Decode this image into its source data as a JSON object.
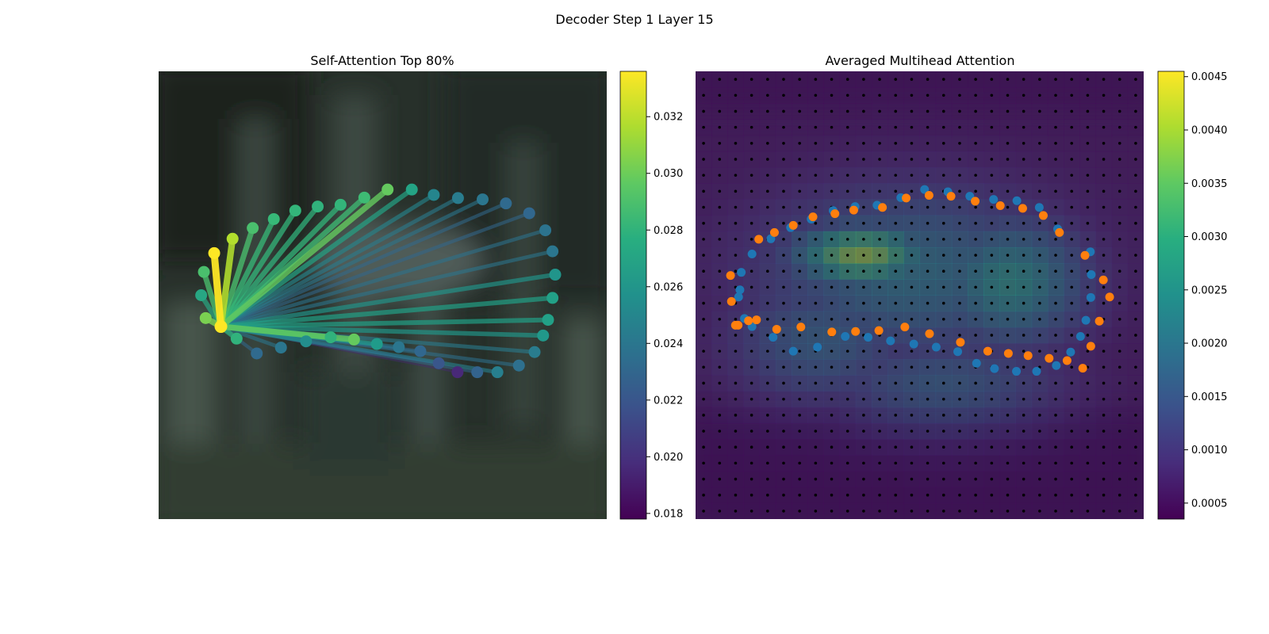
{
  "figure": {
    "title": "Decoder Step 1 Layer 15"
  },
  "chart_data": [
    {
      "type": "scatter",
      "title": "Self-Attention Top 80%",
      "xlim": [
        0,
        1
      ],
      "ylim": [
        0,
        1
      ],
      "axes_visible": false,
      "grid": false,
      "background": "blurred dark green forest photo",
      "colormap": "viridis",
      "colorbar": {
        "range": [
          0.0178,
          0.0336
        ],
        "ticks": [
          0.018,
          0.02,
          0.022,
          0.024,
          0.026,
          0.028,
          0.03,
          0.032
        ],
        "tick_labels": [
          "0.018",
          "0.020",
          "0.022",
          "0.024",
          "0.026",
          "0.028",
          "0.030",
          "0.032"
        ]
      },
      "query_point": {
        "x": 0.139,
        "y": 0.43,
        "value": 0.0336
      },
      "points": [
        {
          "x": 0.124,
          "y": 0.594,
          "v": 0.0336
        },
        {
          "x": 0.165,
          "y": 0.626,
          "v": 0.0318
        },
        {
          "x": 0.21,
          "y": 0.65,
          "v": 0.029
        },
        {
          "x": 0.257,
          "y": 0.67,
          "v": 0.0284
        },
        {
          "x": 0.305,
          "y": 0.689,
          "v": 0.0282
        },
        {
          "x": 0.355,
          "y": 0.698,
          "v": 0.028
        },
        {
          "x": 0.406,
          "y": 0.702,
          "v": 0.0282
        },
        {
          "x": 0.459,
          "y": 0.718,
          "v": 0.0286
        },
        {
          "x": 0.511,
          "y": 0.736,
          "v": 0.0298
        },
        {
          "x": 0.565,
          "y": 0.736,
          "v": 0.027
        },
        {
          "x": 0.614,
          "y": 0.724,
          "v": 0.025
        },
        {
          "x": 0.668,
          "y": 0.717,
          "v": 0.0244
        },
        {
          "x": 0.723,
          "y": 0.714,
          "v": 0.024
        },
        {
          "x": 0.775,
          "y": 0.705,
          "v": 0.0232
        },
        {
          "x": 0.827,
          "y": 0.683,
          "v": 0.023
        },
        {
          "x": 0.863,
          "y": 0.645,
          "v": 0.0238
        },
        {
          "x": 0.879,
          "y": 0.598,
          "v": 0.024
        },
        {
          "x": 0.885,
          "y": 0.546,
          "v": 0.026
        },
        {
          "x": 0.879,
          "y": 0.494,
          "v": 0.0268
        },
        {
          "x": 0.869,
          "y": 0.445,
          "v": 0.0268
        },
        {
          "x": 0.858,
          "y": 0.41,
          "v": 0.0262
        },
        {
          "x": 0.839,
          "y": 0.373,
          "v": 0.0244
        },
        {
          "x": 0.804,
          "y": 0.343,
          "v": 0.0236
        },
        {
          "x": 0.756,
          "y": 0.328,
          "v": 0.0246
        },
        {
          "x": 0.711,
          "y": 0.328,
          "v": 0.0228
        },
        {
          "x": 0.667,
          "y": 0.328,
          "v": 0.0196
        },
        {
          "x": 0.625,
          "y": 0.348,
          "v": 0.022
        },
        {
          "x": 0.584,
          "y": 0.375,
          "v": 0.023
        },
        {
          "x": 0.536,
          "y": 0.384,
          "v": 0.024
        },
        {
          "x": 0.487,
          "y": 0.391,
          "v": 0.0264
        },
        {
          "x": 0.436,
          "y": 0.401,
          "v": 0.0298
        },
        {
          "x": 0.384,
          "y": 0.406,
          "v": 0.028
        },
        {
          "x": 0.329,
          "y": 0.397,
          "v": 0.0256
        },
        {
          "x": 0.273,
          "y": 0.383,
          "v": 0.024
        },
        {
          "x": 0.219,
          "y": 0.37,
          "v": 0.0232
        },
        {
          "x": 0.174,
          "y": 0.403,
          "v": 0.028
        },
        {
          "x": 0.105,
          "y": 0.449,
          "v": 0.0304
        },
        {
          "x": 0.095,
          "y": 0.5,
          "v": 0.0272
        },
        {
          "x": 0.101,
          "y": 0.552,
          "v": 0.029
        }
      ]
    },
    {
      "type": "heatmap",
      "title": "Averaged Multihead Attention",
      "xlim": [
        0,
        1
      ],
      "ylim": [
        0,
        1
      ],
      "axes_visible": false,
      "colormap": "viridis",
      "grid_rows": 28,
      "grid_cols": 28,
      "hotspots": [
        {
          "x": 0.37,
          "y": 0.59,
          "sx": 0.11,
          "sy": 0.05,
          "v": 0.0039
        },
        {
          "x": 0.48,
          "y": 0.55,
          "sx": 0.23,
          "sy": 0.13,
          "v": 0.0023
        },
        {
          "x": 0.7,
          "y": 0.53,
          "sx": 0.12,
          "sy": 0.1,
          "v": 0.0028
        },
        {
          "x": 0.28,
          "y": 0.4,
          "sx": 0.14,
          "sy": 0.1,
          "v": 0.0019
        },
        {
          "x": 0.55,
          "y": 0.3,
          "sx": 0.18,
          "sy": 0.08,
          "v": 0.0018
        }
      ],
      "base_value": 0.00045,
      "colorbar": {
        "range": [
          0.00035,
          0.00455
        ],
        "ticks": [
          0.0005,
          0.001,
          0.0015,
          0.002,
          0.0025,
          0.003,
          0.0035,
          0.004,
          0.0045
        ],
        "tick_labels": [
          "0.0005",
          "0.0010",
          "0.0015",
          "0.0020",
          "0.0025",
          "0.0030",
          "0.0035",
          "0.0040",
          "0.0045"
        ]
      },
      "overlays": [
        {
          "color": "#1f77b4",
          "points": [
            [
              0.109,
              0.448
            ],
            [
              0.096,
              0.496
            ],
            [
              0.102,
              0.551
            ],
            [
              0.126,
              0.592
            ],
            [
              0.168,
              0.626
            ],
            [
              0.212,
              0.651
            ],
            [
              0.258,
              0.67
            ],
            [
              0.307,
              0.689
            ],
            [
              0.356,
              0.698
            ],
            [
              0.405,
              0.701
            ],
            [
              0.458,
              0.718
            ],
            [
              0.511,
              0.736
            ],
            [
              0.563,
              0.731
            ],
            [
              0.612,
              0.721
            ],
            [
              0.665,
              0.714
            ],
            [
              0.717,
              0.711
            ],
            [
              0.767,
              0.696
            ],
            [
              0.808,
              0.648
            ],
            [
              0.881,
              0.597
            ],
            [
              0.883,
              0.546
            ],
            [
              0.882,
              0.495
            ],
            [
              0.871,
              0.444
            ],
            [
              0.859,
              0.408
            ],
            [
              0.837,
              0.373
            ],
            [
              0.805,
              0.343
            ],
            [
              0.761,
              0.33
            ],
            [
              0.716,
              0.33
            ],
            [
              0.667,
              0.336
            ],
            [
              0.627,
              0.348
            ],
            [
              0.585,
              0.374
            ],
            [
              0.537,
              0.384
            ],
            [
              0.487,
              0.391
            ],
            [
              0.435,
              0.398
            ],
            [
              0.385,
              0.406
            ],
            [
              0.334,
              0.408
            ],
            [
              0.272,
              0.384
            ],
            [
              0.218,
              0.375
            ],
            [
              0.173,
              0.406
            ],
            [
              0.126,
              0.43
            ],
            [
              0.099,
              0.512
            ]
          ]
        },
        {
          "color": "#ff7f0e",
          "points": [
            [
              0.078,
              0.544
            ],
            [
              0.08,
              0.486
            ],
            [
              0.095,
              0.433
            ],
            [
              0.118,
              0.443
            ],
            [
              0.141,
              0.625
            ],
            [
              0.176,
              0.64
            ],
            [
              0.218,
              0.656
            ],
            [
              0.262,
              0.675
            ],
            [
              0.311,
              0.682
            ],
            [
              0.353,
              0.69
            ],
            [
              0.417,
              0.696
            ],
            [
              0.47,
              0.717
            ],
            [
              0.521,
              0.723
            ],
            [
              0.57,
              0.721
            ],
            [
              0.624,
              0.71
            ],
            [
              0.68,
              0.7
            ],
            [
              0.73,
              0.694
            ],
            [
              0.776,
              0.678
            ],
            [
              0.812,
              0.64
            ],
            [
              0.869,
              0.589
            ],
            [
              0.91,
              0.534
            ],
            [
              0.924,
              0.496
            ],
            [
              0.901,
              0.442
            ],
            [
              0.882,
              0.386
            ],
            [
              0.864,
              0.337
            ],
            [
              0.829,
              0.354
            ],
            [
              0.789,
              0.359
            ],
            [
              0.742,
              0.365
            ],
            [
              0.698,
              0.37
            ],
            [
              0.652,
              0.375
            ],
            [
              0.591,
              0.395
            ],
            [
              0.522,
              0.414
            ],
            [
              0.467,
              0.429
            ],
            [
              0.409,
              0.421
            ],
            [
              0.357,
              0.419
            ],
            [
              0.304,
              0.418
            ],
            [
              0.235,
              0.429
            ],
            [
              0.181,
              0.424
            ],
            [
              0.136,
              0.445
            ],
            [
              0.089,
              0.433
            ]
          ]
        }
      ]
    }
  ]
}
